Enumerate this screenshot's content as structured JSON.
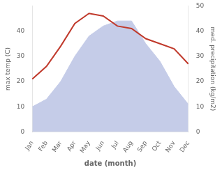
{
  "chart_data": {
    "type": "line",
    "xlabel": "date (month)",
    "ylabel": "max temp (C)",
    "y2label": "med. precipitation (kg/m2)",
    "categories": [
      "Jan",
      "Feb",
      "Mar",
      "Apr",
      "May",
      "Jun",
      "Jul",
      "Aug",
      "Sep",
      "Oct",
      "Nov",
      "Dec"
    ],
    "series": [
      {
        "type": "area",
        "color": "#c5cce8",
        "values": [
          10,
          13,
          20,
          30,
          38,
          42,
          44,
          44,
          35,
          28,
          18,
          11
        ]
      },
      {
        "type": "line",
        "color": "#c0392b",
        "axis": "y2",
        "values": [
          21,
          26,
          34,
          43,
          47,
          46,
          42,
          41,
          37,
          35,
          33,
          27
        ]
      }
    ],
    "ylim": [
      0,
      50
    ],
    "yticks": [
      0,
      10,
      20,
      30,
      40
    ],
    "y2lim": [
      0,
      50
    ],
    "y2ticks": [
      0,
      10,
      20,
      30,
      40,
      50
    ],
    "grid": false
  }
}
